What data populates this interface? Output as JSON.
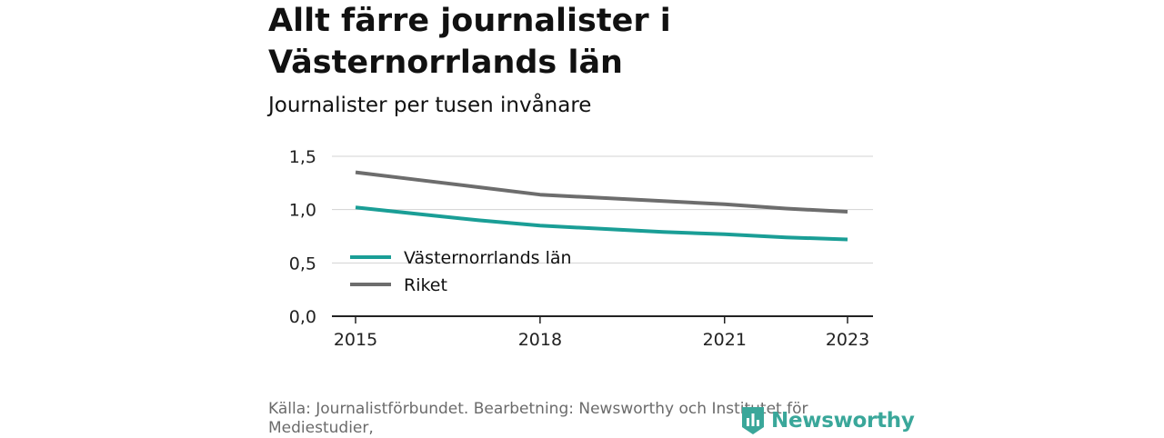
{
  "header": {
    "title": "Allt färre journalister i Västernorrlands län",
    "subtitle": "Journalister per tusen invånare"
  },
  "chart_data": {
    "type": "line",
    "title": "Allt färre journalister i Västernorrlands län",
    "subtitle": "Journalister per tusen invånare",
    "xlabel": "",
    "ylabel": "",
    "x": [
      2015,
      2016,
      2017,
      2018,
      2019,
      2020,
      2021,
      2022,
      2023
    ],
    "x_ticks": [
      "2015",
      "2018",
      "2021",
      "2023"
    ],
    "y_ticks": [
      "0,0",
      "0,5",
      "1,0",
      "1,5"
    ],
    "ylim": [
      0,
      1.5
    ],
    "grid": "horizontal",
    "legend_position": "inside-left",
    "series": [
      {
        "name": "Västernorrlands län",
        "color": "#1a9e96",
        "values": [
          1.02,
          0.96,
          0.9,
          0.85,
          0.82,
          0.79,
          0.77,
          0.74,
          0.72
        ]
      },
      {
        "name": "Riket",
        "color": "#6d6d6d",
        "values": [
          1.35,
          1.28,
          1.21,
          1.14,
          1.11,
          1.08,
          1.05,
          1.01,
          0.98
        ]
      }
    ]
  },
  "footer": {
    "source": "Källa: Journalistförbundet. Bearbetning: Newsworthy och Institutet för Mediestudier,",
    "brand": "Newsworthy",
    "brand_color": "#3aa79a"
  }
}
